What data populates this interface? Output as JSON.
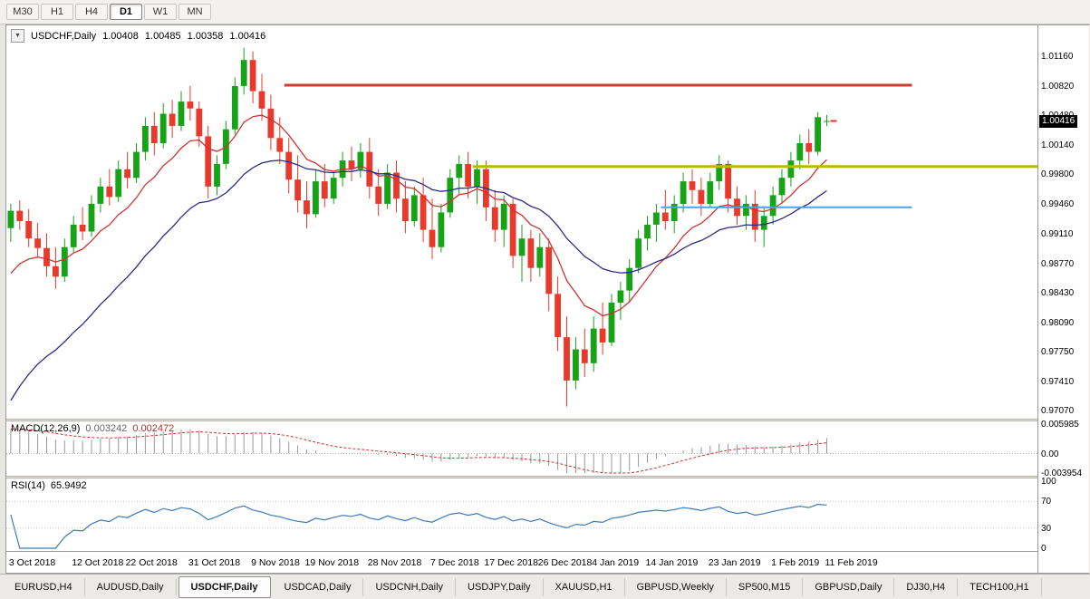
{
  "window": {
    "toolbar_timeframes": [
      {
        "label": "M30",
        "active": false
      },
      {
        "label": "H1",
        "active": false
      },
      {
        "label": "H4",
        "active": false
      },
      {
        "label": "D1",
        "active": true
      },
      {
        "label": "W1",
        "active": false
      },
      {
        "label": "MN",
        "active": false
      }
    ]
  },
  "chart_header": {
    "dropdown_icon": "▼",
    "symbol": "USDCHF,Daily",
    "open": "1.00408",
    "high": "1.00485",
    "low": "1.00358",
    "close": "1.00416"
  },
  "price_axis": {
    "labels": [
      "1.01160",
      "1.00820",
      "1.00480",
      "1.00140",
      "0.99800",
      "0.99460",
      "0.99110",
      "0.98770",
      "0.98430",
      "0.98090",
      "0.97750",
      "0.97410",
      "0.97070"
    ],
    "current_price": "1.00416"
  },
  "macd_panel": {
    "name_label": "MACD(12,26,9)",
    "main_value": "0.003242",
    "signal_value": "0.002472",
    "axis_labels": [
      "0.005985",
      "0.00",
      "-0.003954"
    ]
  },
  "rsi_panel": {
    "name_label": "RSI(14)",
    "value": "65.9492",
    "axis_labels": [
      "100",
      "70",
      "30",
      "0"
    ]
  },
  "bottom_tabs": [
    {
      "label": "EURUSD,H4",
      "active": false
    },
    {
      "label": "AUDUSD,Daily",
      "active": false
    },
    {
      "label": "USDCHF,Daily",
      "active": true
    },
    {
      "label": "USDCAD,Daily",
      "active": false
    },
    {
      "label": "USDCNH,Daily",
      "active": false
    },
    {
      "label": "USDJPY,Daily",
      "active": false
    },
    {
      "label": "XAUUSD,H1",
      "active": false
    },
    {
      "label": "GBPUSD,Weekly",
      "active": false
    },
    {
      "label": "SP500,M15",
      "active": false
    },
    {
      "label": "GBPUSD,Daily",
      "active": false
    },
    {
      "label": "DJ30,H4",
      "active": false
    },
    {
      "label": "TECH100,H1",
      "active": false
    }
  ],
  "colors": {
    "up": "#17a317",
    "down": "#e8392d",
    "ma_fast": "#cf3434",
    "ma_slow": "#2c2c86",
    "macd_hist": "#979797",
    "macd_signal": "#cc3333",
    "rsi_line": "#3e7ab8",
    "hline_red": "#d03b34",
    "hline_olive": "#b7bb00",
    "hline_blue": "#4aa2e8",
    "badge_bg": "#000000",
    "badge_text": "#ffffff"
  },
  "chart_data": {
    "type": "candlestick",
    "title": "USDCHF,Daily",
    "ylim": [
      0.9698,
      1.0152
    ],
    "right_shift_slots": 23,
    "date_ticks": [
      {
        "slot": 0,
        "label": "3 Oct 2018"
      },
      {
        "slot": 7,
        "label": "12 Oct 2018"
      },
      {
        "slot": 13,
        "label": "22 Oct 2018"
      },
      {
        "slot": 20,
        "label": "31 Oct 2018"
      },
      {
        "slot": 27,
        "label": "9 Nov 2018"
      },
      {
        "slot": 33,
        "label": "19 Nov 2018"
      },
      {
        "slot": 40,
        "label": "28 Nov 2018"
      },
      {
        "slot": 47,
        "label": "7 Dec 2018"
      },
      {
        "slot": 53,
        "label": "17 Dec 2018"
      },
      {
        "slot": 59,
        "label": "26 Dec 2018"
      },
      {
        "slot": 65,
        "label": "4 Jan 2019"
      },
      {
        "slot": 71,
        "label": "14 Jan 2019"
      },
      {
        "slot": 78,
        "label": "23 Jan 2019"
      },
      {
        "slot": 85,
        "label": "1 Feb 2019"
      },
      {
        "slot": 91,
        "label": "11 Feb 2019"
      }
    ],
    "hlines": [
      {
        "price": 1.0083,
        "x1_slot": 31,
        "x2_slot": 101,
        "color_key": "hline_red",
        "width": 3
      },
      {
        "price": 0.9989,
        "x1_slot": 52,
        "x2_slot": 115,
        "color_key": "hline_olive",
        "width": 3
      },
      {
        "price": 0.9942,
        "x1_slot": 73,
        "x2_slot": 101,
        "color_key": "hline_blue",
        "width": 2
      }
    ],
    "moving_averages": [
      {
        "type": "ema",
        "period": 10,
        "seed": 0.985,
        "color_key": "ma_fast"
      },
      {
        "type": "ema",
        "period": 24,
        "seed": 0.97,
        "color_key": "ma_slow"
      }
    ],
    "macd": {
      "fast": 12,
      "slow": 26,
      "signal": 9,
      "ylim": [
        -0.003954,
        0.005985
      ]
    },
    "rsi": {
      "period": 14,
      "levels": [
        70,
        30
      ]
    },
    "ohlc": [
      [
        0.9918,
        0.9946,
        0.9902,
        0.9938
      ],
      [
        0.9938,
        0.995,
        0.9916,
        0.9926
      ],
      [
        0.9926,
        0.994,
        0.9896,
        0.9906
      ],
      [
        0.9906,
        0.9924,
        0.9884,
        0.9895
      ],
      [
        0.9895,
        0.9912,
        0.9862,
        0.9874
      ],
      [
        0.9874,
        0.9896,
        0.9848,
        0.9862
      ],
      [
        0.9862,
        0.9906,
        0.9856,
        0.9896
      ],
      [
        0.9896,
        0.9932,
        0.989,
        0.9922
      ],
      [
        0.9922,
        0.9942,
        0.9904,
        0.9914
      ],
      [
        0.9914,
        0.9956,
        0.9908,
        0.9946
      ],
      [
        0.9946,
        0.9976,
        0.9936,
        0.9966
      ],
      [
        0.9966,
        0.9986,
        0.9944,
        0.9954
      ],
      [
        0.9954,
        0.9996,
        0.9948,
        0.9986
      ],
      [
        0.9986,
        1.0006,
        0.9964,
        0.9976
      ],
      [
        0.9976,
        1.0016,
        0.997,
        1.0006
      ],
      [
        1.0006,
        1.0046,
        0.9996,
        1.0036
      ],
      [
        1.0036,
        1.0052,
        1.0002,
        1.0016
      ],
      [
        1.0016,
        1.0062,
        1.001,
        1.005
      ],
      [
        1.005,
        1.0066,
        1.0022,
        1.0036
      ],
      [
        1.0036,
        1.0076,
        1.003,
        1.0064
      ],
      [
        1.0064,
        1.0082,
        1.0042,
        1.0056
      ],
      [
        1.0056,
        1.0064,
        1.0012,
        1.0024
      ],
      [
        1.0024,
        1.0036,
        0.9952,
        0.9966
      ],
      [
        0.9966,
        1.0002,
        0.9956,
        0.9992
      ],
      [
        0.9992,
        1.0042,
        0.9986,
        1.0032
      ],
      [
        1.0032,
        1.0092,
        1.0026,
        1.0082
      ],
      [
        1.0082,
        1.0126,
        1.0072,
        1.0112
      ],
      [
        1.0112,
        1.0122,
        1.0062,
        1.0076
      ],
      [
        1.0076,
        1.0096,
        1.0042,
        1.0056
      ],
      [
        1.0056,
        1.0072,
        1.0008,
        1.0022
      ],
      [
        1.0022,
        1.0046,
        0.9992,
        1.0006
      ],
      [
        1.0006,
        1.0022,
        0.9958,
        0.9974
      ],
      [
        0.9974,
        1.0002,
        0.9936,
        0.995
      ],
      [
        0.995,
        0.9972,
        0.9918,
        0.9934
      ],
      [
        0.9934,
        0.9986,
        0.993,
        0.9972
      ],
      [
        0.9972,
        0.9992,
        0.9942,
        0.9952
      ],
      [
        0.9952,
        0.9982,
        0.9946,
        0.9976
      ],
      [
        0.9976,
        1.0006,
        0.9966,
        0.9996
      ],
      [
        0.9996,
        1.0012,
        0.9972,
        0.9986
      ],
      [
        0.9986,
        1.0016,
        0.9976,
        1.0006
      ],
      [
        1.0006,
        1.0022,
        0.9952,
        0.9966
      ],
      [
        0.9966,
        0.9986,
        0.9932,
        0.9946
      ],
      [
        0.9946,
        0.9992,
        0.994,
        0.9982
      ],
      [
        0.9982,
        0.9996,
        0.9936,
        0.9952
      ],
      [
        0.9952,
        0.9972,
        0.9912,
        0.9926
      ],
      [
        0.9926,
        0.9966,
        0.992,
        0.9956
      ],
      [
        0.9956,
        0.9976,
        0.9902,
        0.9916
      ],
      [
        0.9916,
        0.9952,
        0.9882,
        0.9896
      ],
      [
        0.9896,
        0.9946,
        0.989,
        0.9936
      ],
      [
        0.9936,
        0.9986,
        0.993,
        0.9976
      ],
      [
        0.9976,
        1.0002,
        0.9956,
        0.9992
      ],
      [
        0.9992,
        1.0006,
        0.9952,
        0.9966
      ],
      [
        0.9966,
        0.9996,
        0.9946,
        0.9986
      ],
      [
        0.9986,
        0.9996,
        0.9926,
        0.9942
      ],
      [
        0.9942,
        0.9962,
        0.9902,
        0.9916
      ],
      [
        0.9916,
        0.9956,
        0.9896,
        0.9946
      ],
      [
        0.9946,
        0.9952,
        0.9872,
        0.9886
      ],
      [
        0.9886,
        0.9922,
        0.9856,
        0.9906
      ],
      [
        0.9906,
        0.9916,
        0.9856,
        0.9872
      ],
      [
        0.9872,
        0.9912,
        0.9862,
        0.9896
      ],
      [
        0.9896,
        0.9906,
        0.9822,
        0.9842
      ],
      [
        0.9842,
        0.9862,
        0.9776,
        0.9792
      ],
      [
        0.9792,
        0.9816,
        0.9712,
        0.9742
      ],
      [
        0.9742,
        0.9792,
        0.9732,
        0.9778
      ],
      [
        0.9778,
        0.9802,
        0.9746,
        0.9762
      ],
      [
        0.9762,
        0.9816,
        0.9752,
        0.9802
      ],
      [
        0.9802,
        0.9832,
        0.9772,
        0.9786
      ],
      [
        0.9786,
        0.9842,
        0.9782,
        0.9832
      ],
      [
        0.9832,
        0.9856,
        0.9812,
        0.9846
      ],
      [
        0.9846,
        0.9882,
        0.9832,
        0.9872
      ],
      [
        0.9872,
        0.9916,
        0.9866,
        0.9906
      ],
      [
        0.9906,
        0.9932,
        0.9892,
        0.9922
      ],
      [
        0.9922,
        0.9946,
        0.9902,
        0.9936
      ],
      [
        0.9936,
        0.9962,
        0.9916,
        0.9926
      ],
      [
        0.9926,
        0.9956,
        0.9912,
        0.9946
      ],
      [
        0.9946,
        0.9982,
        0.9936,
        0.9972
      ],
      [
        0.9972,
        0.9986,
        0.9946,
        0.9962
      ],
      [
        0.9962,
        0.9976,
        0.9932,
        0.9946
      ],
      [
        0.9946,
        0.9982,
        0.9942,
        0.9972
      ],
      [
        0.9972,
        1.0002,
        0.9962,
        0.9992
      ],
      [
        0.9992,
        0.9996,
        0.9936,
        0.9952
      ],
      [
        0.9952,
        0.9966,
        0.9922,
        0.9932
      ],
      [
        0.9932,
        0.9956,
        0.9916,
        0.9946
      ],
      [
        0.9946,
        0.9962,
        0.9902,
        0.9916
      ],
      [
        0.9916,
        0.9942,
        0.9896,
        0.9932
      ],
      [
        0.9932,
        0.9966,
        0.9922,
        0.9956
      ],
      [
        0.9956,
        0.9986,
        0.9946,
        0.9976
      ],
      [
        0.9976,
        1.0006,
        0.9966,
        0.9996
      ],
      [
        0.9996,
        1.0026,
        0.9986,
        1.0016
      ],
      [
        1.0016,
        1.0032,
        0.9992,
        1.0006
      ],
      [
        1.0006,
        1.0052,
        1.0002,
        1.0046
      ],
      [
        1.00408,
        1.00485,
        1.00358,
        1.00416
      ]
    ]
  }
}
